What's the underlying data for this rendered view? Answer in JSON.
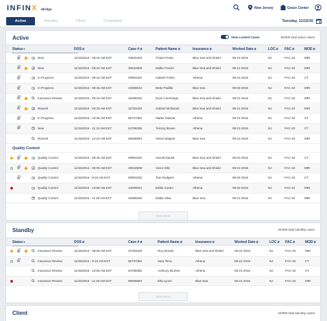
{
  "header": {
    "logo_text": "INFINX",
    "logo_sub": "iBridge",
    "location": "New Jersey",
    "center": "Grace Center"
  },
  "tabs": [
    {
      "label": "Active"
    },
    {
      "label": "Standby"
    },
    {
      "label": "Client"
    },
    {
      "label": "Completed"
    }
  ],
  "date": "Tuesday, 11/15/16",
  "columns": [
    "Status",
    "DOS",
    "Case #",
    "Patient Name",
    "Insurance",
    "Worked Date",
    "LOC",
    "FAC",
    "MOD"
  ],
  "active": {
    "title": "Active",
    "toggle_label": "View Locked Cases",
    "total": "50/300 total active cases",
    "rows": [
      {
        "status": "New",
        "dos": "11/15/2016 - 08:15 AM EST",
        "case": "23820403",
        "patient": "Chase Poole",
        "insurance": "Blue Sea and Shield",
        "worked": "08-21-2016",
        "loc": "NJ",
        "fac": "FAC-43",
        "mod": "MRI"
      },
      {
        "status": "New",
        "dos": "11/15/2016 - 08:22 AM EST",
        "case": "30024909",
        "patient": "Mollie Frazier",
        "insurance": "Blue Sea and Shield",
        "worked": "08-21-2016",
        "loc": "NJ",
        "fac": "FAC-43",
        "mod": "MRI"
      },
      {
        "status": "In Progress",
        "dos": "11/15/2016 - 08:22 AM EST",
        "case": "00904202",
        "patient": "Gabriel Fisher",
        "insurance": "Athena",
        "worked": "08-21-2016",
        "loc": "NJ",
        "fac": "FAC-43",
        "mod": "CT"
      },
      {
        "status": "In Progress",
        "dos": "11/15/2016 - 08:45 AM EST",
        "case": "43009042",
        "patient": "Betty Padilla",
        "insurance": "Blue Sea",
        "worked": "09-02-2016",
        "loc": "NJ",
        "fac": "FAC-43",
        "mod": "MRI"
      },
      {
        "status": "Insurance Review",
        "dos": "11/15/2016 - 09:15 AM EST",
        "case": "48399205",
        "patient": "Evan Cummings",
        "insurance": "Blue Sea and Shield",
        "worked": "08-21-2016",
        "loc": "NJ",
        "fac": "FAC-43",
        "mod": "MRI"
      },
      {
        "status": "Rework",
        "dos": "11/15/2016 - 09:20 AM EST",
        "case": "32783429",
        "patient": "Gabriel McDaniel",
        "insurance": "Blue Sea and Shield",
        "worked": "08-21-2016",
        "loc": "NJ",
        "fac": "FAC-43",
        "mod": "MRI"
      },
      {
        "status": "In Progress",
        "dos": "11/15/2016 - 10:35 AM EST",
        "case": "96737382",
        "patient": "Mattie Salazar",
        "insurance": "Athena",
        "worked": "08-21-2016",
        "loc": "NJ",
        "fac": "FAC-43",
        "mod": "CT"
      },
      {
        "status": "New",
        "dos": "11/15/2016 - 11:15 AM EST",
        "case": "54789356",
        "patient": "Tommy Brown",
        "insurance": "Athena",
        "worked": "08-21-2016",
        "loc": "NJ",
        "fac": "FAC-43",
        "mod": "CT"
      },
      {
        "status": "Rework",
        "dos": "11/15/2016 - 12:10 AM EST",
        "case": "96508993",
        "patient": "Glenn Wagner",
        "insurance": "Blue Sea",
        "worked": "08-21-2016",
        "loc": "NJ",
        "fac": "FAC-43",
        "mod": "MRI"
      }
    ],
    "group_label": "Quality Control",
    "qc_rows": [
      {
        "status": "Quality Control",
        "dos": "11/15/2016 - 08:45 AM EST",
        "case": "00904202",
        "patient": "Harold Daniel",
        "insurance": "Blue Sea and Shield",
        "worked": "09-02-2016",
        "loc": "NJ",
        "fac": "FAC-43",
        "mod": "CT"
      },
      {
        "status": "Quality Control",
        "dos": "11/15/2016 - 09:05 AM EST",
        "case": "30024909",
        "patient": "Victor Ellis",
        "insurance": "Blue Sea and Shield",
        "worked": "08-21-2016",
        "loc": "NJ",
        "fac": "FAC-43",
        "mod": "MRI"
      },
      {
        "status": "Quality Control",
        "dos": "11/15/2016 - 9:15 AM EST",
        "case": "00904202",
        "patient": "Tom Rodgers",
        "insurance": "Athena",
        "worked": "09-02-2016",
        "loc": "NJ",
        "fac": "FAC-43",
        "mod": "CT"
      },
      {
        "status": "Quality Control",
        "dos": "11/15/2016 - 10:55 AM EST",
        "case": "43009042",
        "patient": "Eddie Castro",
        "insurance": "Athena",
        "worked": "09-02-2016",
        "loc": "NJ",
        "fac": "FAC-43",
        "mod": "MRI"
      },
      {
        "status": "Quality Control",
        "dos": "11/15/2016 - 11:28 AM EST",
        "case": "48399205",
        "patient": "Eddie Silva",
        "insurance": "Blue Sea",
        "worked": "08-21-2016",
        "loc": "NJ",
        "fac": "FAC-43",
        "mod": "MRI"
      }
    ],
    "view_more": "View More"
  },
  "standby": {
    "title": "Standby",
    "total": "20/280 total standby cases",
    "rows": [
      {
        "status": "Insurance Review",
        "dos": "11/15/2016 - 09:05 AM EST",
        "case": "32783429",
        "patient": "Roy Woods",
        "insurance": "Blue Sea and Shield",
        "worked": "08-21-2016",
        "loc": "NJ",
        "fac": "FAC-43",
        "mod": "MRI"
      },
      {
        "status": "Insurance Review",
        "dos": "11/15/2016 - 9:15 AM EST",
        "case": "96737382",
        "patient": "Sara Terry",
        "insurance": "Athena",
        "worked": "08-21-2016",
        "loc": "NJ",
        "fac": "FAC-43",
        "mod": "CT"
      },
      {
        "status": "Insurance Review",
        "dos": "11/15/2016 - 10:55 AM EST",
        "case": "54789356",
        "patient": "Anthony McGee",
        "insurance": "Athena",
        "worked": "08-21-2016",
        "loc": "NJ",
        "fac": "FAC-43",
        "mod": "CT"
      },
      {
        "status": "Insurance Review",
        "dos": "11/15/2016 - 11:28 AM EST",
        "case": "96508993",
        "patient": "Ella Lynch",
        "insurance": "Blue Sea",
        "worked": "08-21-2016",
        "loc": "NJ",
        "fac": "FAC-43",
        "mod": "MRI"
      }
    ],
    "view_more": "View More"
  },
  "client": {
    "title": "Client",
    "total": "34/900 total standby cases"
  },
  "colors": {
    "brand": "#1d3c6a",
    "accent": "#f5a623",
    "alert": "#c0232c"
  }
}
